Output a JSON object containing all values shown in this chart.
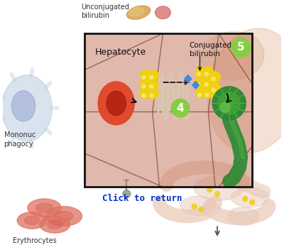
{
  "bg_color": "#ffffff",
  "click_text": "Click to return",
  "click_color": "#0033cc",
  "label_hepatocyte": "Hepatocyte",
  "label_conjugated": "Conjugated\nbilirubin",
  "label_unconjugated": "Unconjugated\nbilirubin",
  "label_mononuc": "Mononuc\nphagocy",
  "label_erythrocytes": "Erythrocytes",
  "label_4": "4",
  "label_5": "5",
  "hepatocyte_bg": "#c47a5a",
  "cell_wall_color": "#7a4020",
  "rbc_color": "#e04428",
  "rbc_inner": "#b02010",
  "yellow_color": "#f0d010",
  "yellow_hi": "#f8f080",
  "blue_color": "#4488dd",
  "green_light": "#88cc44",
  "green_dark": "#2a8833",
  "green_seg": "#44aa33",
  "macro_color": "#b8cce0",
  "macro_nucleus": "#8899cc",
  "liver_color": "#cc8855",
  "intestine_fill": "#e8c8b8",
  "intestine_line": "#c8a090",
  "box_border": "#111111",
  "arrow_color": "#111111",
  "erythrocyte_color": "#e07060",
  "erythrocyte_dark": "#cc5545",
  "er_color": "#d8c8b0",
  "needle_color": "#778866",
  "tan_blob": "#d4a050"
}
